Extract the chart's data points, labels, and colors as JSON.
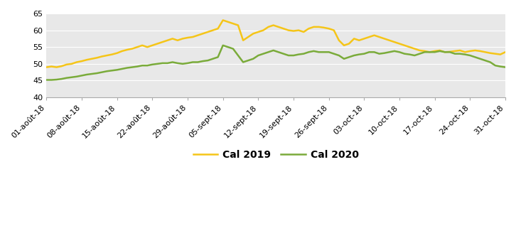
{
  "ylim": [
    40,
    65
  ],
  "yticks": [
    40,
    45,
    50,
    55,
    60,
    65
  ],
  "background_color": "#e8e8e8",
  "cal2019_color": "#f5c518",
  "cal2020_color": "#7aab3a",
  "line_width": 1.8,
  "legend_fontsize": 10,
  "tick_fontsize": 8,
  "xtick_labels": [
    "01-août-18",
    "08-août-18",
    "15-août-18",
    "22-août-18",
    "29-août-18",
    "05-sept-18",
    "12-sept-18",
    "19-sept-18",
    "26-sept-18",
    "03-oct-18",
    "10-oct-18",
    "17-oct-18",
    "24-oct-18",
    "31-oct-18"
  ],
  "cal2019": [
    49.0,
    49.2,
    49.0,
    49.3,
    49.8,
    50.0,
    50.5,
    50.8,
    51.2,
    51.5,
    51.8,
    52.2,
    52.5,
    52.8,
    53.2,
    53.8,
    54.2,
    54.5,
    55.0,
    55.5,
    55.0,
    55.5,
    56.0,
    56.5,
    57.0,
    57.5,
    57.0,
    57.5,
    57.8,
    58.0,
    58.5,
    59.0,
    59.5,
    60.0,
    60.5,
    63.0,
    62.5,
    62.0,
    61.5,
    57.0,
    58.0,
    59.0,
    59.5,
    60.0,
    61.0,
    61.5,
    61.0,
    60.5,
    60.0,
    59.8,
    60.0,
    59.5,
    60.5,
    61.0,
    61.0,
    60.8,
    60.5,
    60.0,
    57.0,
    55.5,
    56.0,
    57.5,
    57.0,
    57.5,
    58.0,
    58.5,
    58.0,
    57.5,
    57.0,
    56.5,
    56.0,
    55.5,
    55.0,
    54.5,
    54.0,
    53.8,
    53.5,
    53.8,
    54.0,
    53.5,
    53.6,
    53.8,
    54.0,
    53.5,
    53.8,
    54.0,
    53.8,
    53.5,
    53.2,
    53.0,
    52.8,
    53.5
  ],
  "cal2020": [
    45.2,
    45.2,
    45.3,
    45.5,
    45.8,
    46.0,
    46.2,
    46.5,
    46.8,
    47.0,
    47.2,
    47.5,
    47.8,
    48.0,
    48.2,
    48.5,
    48.8,
    49.0,
    49.2,
    49.5,
    49.5,
    49.8,
    50.0,
    50.2,
    50.2,
    50.5,
    50.2,
    50.0,
    50.2,
    50.5,
    50.5,
    50.8,
    51.0,
    51.5,
    52.0,
    55.5,
    55.0,
    54.5,
    52.5,
    50.5,
    51.0,
    51.5,
    52.5,
    53.0,
    53.5,
    54.0,
    53.5,
    53.0,
    52.5,
    52.5,
    52.8,
    53.0,
    53.5,
    53.8,
    53.5,
    53.5,
    53.5,
    53.0,
    52.5,
    51.5,
    52.0,
    52.5,
    52.8,
    53.0,
    53.5,
    53.5,
    53.0,
    53.2,
    53.5,
    53.8,
    53.5,
    53.0,
    52.8,
    52.5,
    53.0,
    53.5,
    53.5,
    53.5,
    53.8,
    53.5,
    53.5,
    53.0,
    53.0,
    52.8,
    52.5,
    52.0,
    51.5,
    51.0,
    50.5,
    49.5,
    49.2,
    49.0
  ]
}
